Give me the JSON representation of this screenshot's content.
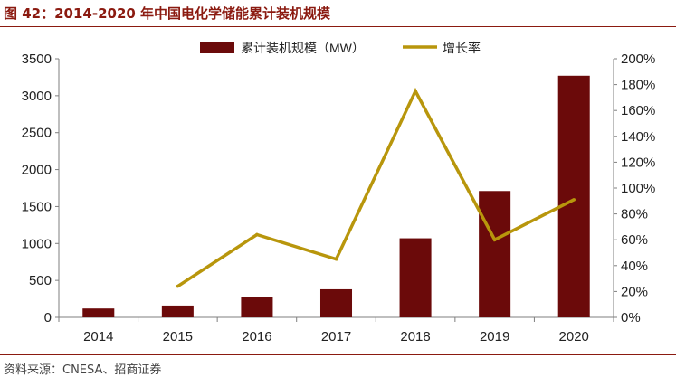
{
  "header": {
    "title": "图 42：2014-2020 年中国电化学储能累计装机规模"
  },
  "footer": {
    "source": "资料来源：CNESA、招商证券"
  },
  "colors": {
    "bar": "#6b0a0a",
    "line": "#b8960c",
    "title": "#8b1a10"
  },
  "chart_data": {
    "type": "bar",
    "categories": [
      "2014",
      "2015",
      "2016",
      "2017",
      "2018",
      "2019",
      "2020"
    ],
    "series": [
      {
        "name": "累计装机规模（MW）",
        "kind": "bar",
        "axis": "left",
        "values": [
          120,
          160,
          270,
          380,
          1070,
          1710,
          3270
        ]
      },
      {
        "name": "增长率",
        "kind": "line",
        "axis": "right",
        "values": [
          null,
          24,
          64,
          45,
          175,
          60,
          91
        ]
      }
    ],
    "ylim_left": [
      0,
      3500
    ],
    "ytick_left": [
      "0",
      "500",
      "1000",
      "1500",
      "2000",
      "2500",
      "3000",
      "3500"
    ],
    "ylim_right": [
      0,
      200
    ],
    "ytick_right": [
      "0%",
      "20%",
      "40%",
      "60%",
      "80%",
      "100%",
      "120%",
      "140%",
      "160%",
      "180%",
      "200%"
    ],
    "legend_position": "top-center",
    "grid": false
  }
}
